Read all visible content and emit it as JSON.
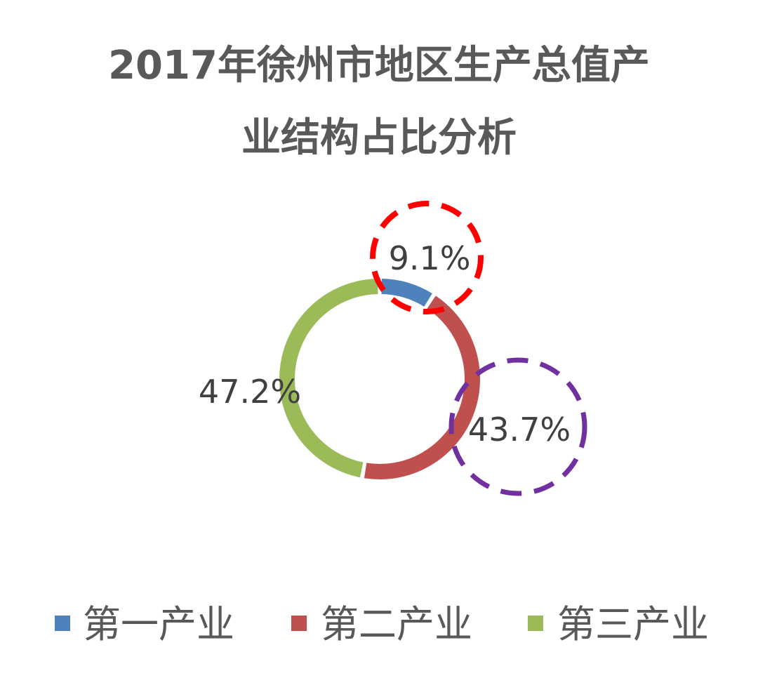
{
  "chart_data": {
    "type": "pie",
    "variant": "doughnut",
    "title_lines": [
      "2017年徐州市地区生产总值产",
      "业结构占比分析"
    ],
    "categories": [
      "第一产业",
      "第二产业",
      "第三产业"
    ],
    "values": [
      9.1,
      43.7,
      47.2
    ],
    "data_labels": [
      "9.1%",
      "43.7%",
      "47.2%"
    ],
    "colors": [
      "#4F81BD",
      "#C0504D",
      "#9BBB59"
    ],
    "legend_position": "bottom",
    "highlight_circles": [
      {
        "target": "9.1%",
        "color": "#FF0000",
        "style": "dashed"
      },
      {
        "target": "43.7%",
        "color": "#7030A0",
        "style": "dashed"
      }
    ]
  }
}
